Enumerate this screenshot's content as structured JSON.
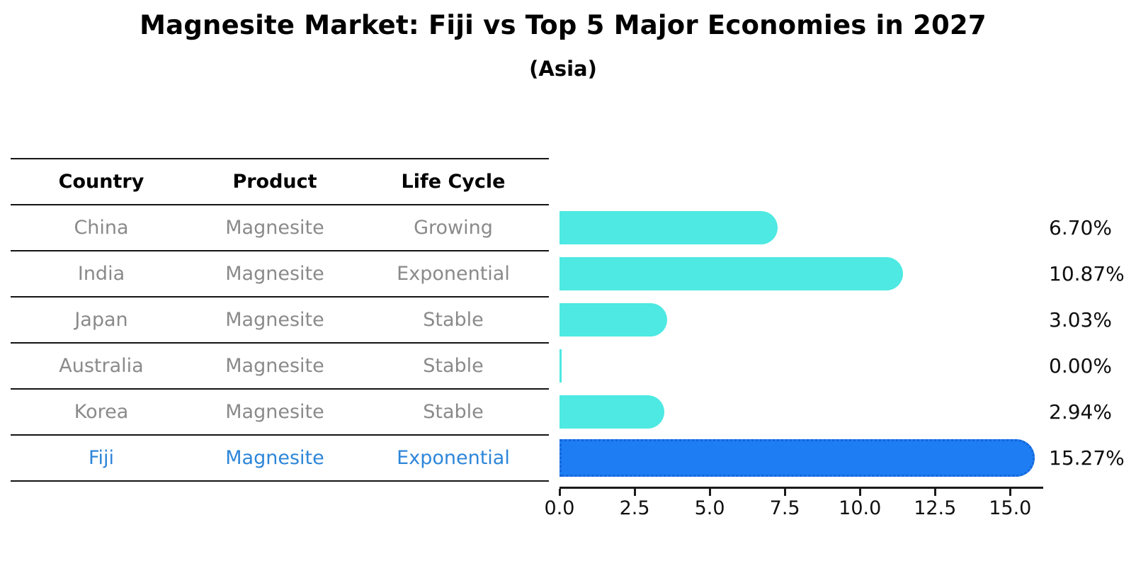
{
  "title": "Magnesite Market: Fiji vs Top 5 Major Economies in 2027",
  "subtitle": "(Asia)",
  "table": {
    "headers": [
      "Country",
      "Product",
      "Life Cycle"
    ],
    "rows": [
      {
        "country": "China",
        "product": "Magnesite",
        "life_cycle": "Growing",
        "highlight": false
      },
      {
        "country": "India",
        "product": "Magnesite",
        "life_cycle": "Exponential",
        "highlight": false
      },
      {
        "country": "Japan",
        "product": "Magnesite",
        "life_cycle": "Stable",
        "highlight": false
      },
      {
        "country": "Australia",
        "product": "Magnesite",
        "life_cycle": "Stable",
        "highlight": false
      },
      {
        "country": "Korea",
        "product": "Magnesite",
        "life_cycle": "Stable",
        "highlight": false
      },
      {
        "country": "Fiji",
        "product": "Magnesite",
        "life_cycle": "Exponential",
        "highlight": true
      }
    ]
  },
  "chart_data": {
    "type": "bar",
    "orientation": "horizontal",
    "title": "Magnesite Market: Fiji vs Top 5 Major Economies in 2027",
    "subtitle": "(Asia)",
    "categories": [
      "China",
      "India",
      "Japan",
      "Australia",
      "Korea",
      "Fiji"
    ],
    "values": [
      6.7,
      10.87,
      3.03,
      0.0,
      2.94,
      15.27
    ],
    "value_labels": [
      "6.70%",
      "10.87%",
      "3.03%",
      "0.00%",
      "2.94%",
      "15.27%"
    ],
    "x_ticks": [
      "0.0",
      "2.5",
      "5.0",
      "7.5",
      "10.0",
      "12.5",
      "15.0"
    ],
    "xlim": [
      0,
      16.03
    ],
    "xlabel": "",
    "ylabel": "",
    "grid": false,
    "legend": false,
    "bar_color": "#4DE9E2",
    "highlight_color": "#1E7DF2",
    "highlight_border_color": "#1565d8",
    "highlight_text_color": "#2E86D9",
    "highlight_index": 5
  }
}
